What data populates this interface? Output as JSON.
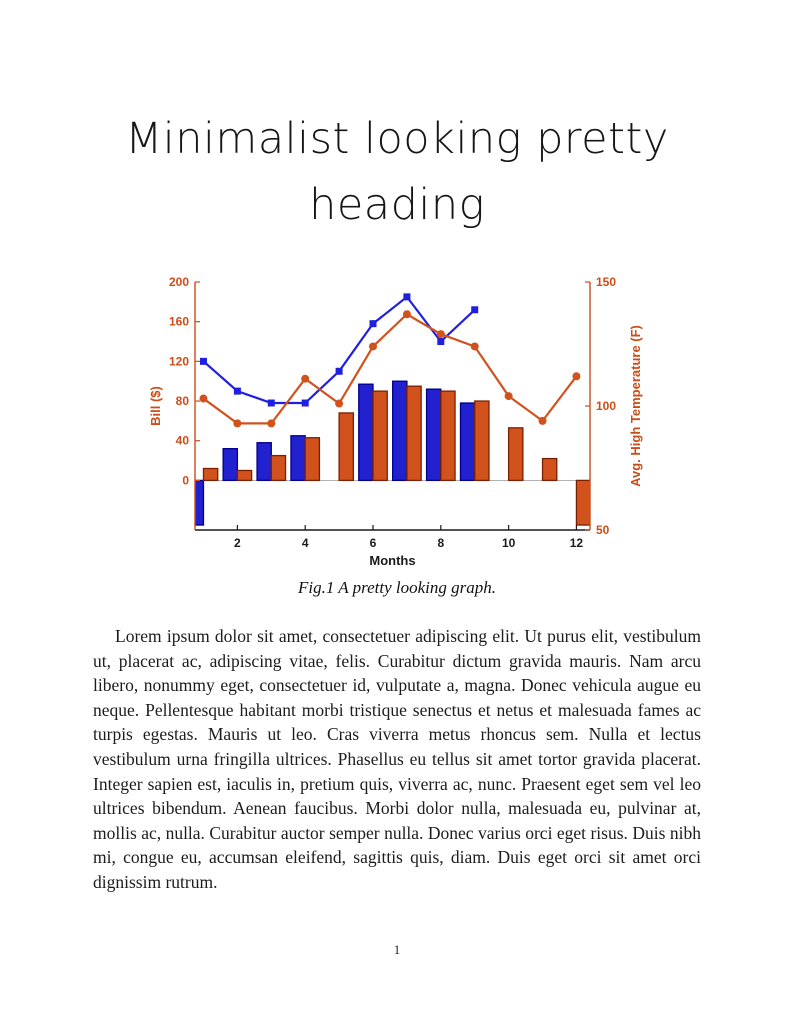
{
  "page": {
    "heading_lines": [
      "Minimalist looking pretty",
      "heading"
    ],
    "figure_caption": "Fig.1 A pretty looking graph.",
    "body_paragraph": "Lorem ipsum dolor sit amet, consectetuer adipiscing elit. Ut purus elit, vestibulum ut, placerat ac, adipiscing vitae, felis. Curabitur dictum gravida mauris. Nam arcu libero, nonummy eget, consectetuer id, vulputate a, magna. Donec vehicula augue eu neque. Pellentesque habitant morbi tristique senectus et netus et malesuada fames ac turpis egestas. Mauris ut leo. Cras viverra metus rhoncus sem. Nulla et lectus vestibulum urna fringilla ultrices. Phasellus eu tellus sit amet tortor gravida placerat. Integer sapien est, iaculis in, pretium quis, viverra ac, nunc. Praesent eget sem vel leo ultrices bibendum. Aenean faucibus. Morbi dolor nulla, malesuada eu, pulvinar at, mollis ac, nulla. Curabitur auctor semper nulla. Donec varius orci eget risus. Duis nibh mi, congue eu, accumsan eleifend, sagittis quis, diam. Duis eget orci sit amet orci dignissim rutrum.",
    "page_number": "1"
  },
  "chart_data": {
    "type": "combo",
    "title": "",
    "xlabel": "Months",
    "ylabel_left": "Bill ($)",
    "ylabel_right": "Avg. High Temperature (F)",
    "x": [
      1,
      2,
      3,
      4,
      5,
      6,
      7,
      8,
      9,
      10,
      11,
      12
    ],
    "xlim": [
      0.75,
      12.4
    ],
    "xticks": [
      2,
      4,
      6,
      8,
      10,
      12
    ],
    "ylim_left": [
      -50,
      200
    ],
    "yticks_left": [
      0,
      40,
      80,
      120,
      160,
      200
    ],
    "ylim_right": [
      50,
      150
    ],
    "yticks_right": [
      50,
      100,
      150
    ],
    "grid": false,
    "legend": "none",
    "axis_color_left": "#cb4d17",
    "axis_color_right": "#cb4d17",
    "axis_color_x": "#1a1a1a",
    "series": [
      {
        "name": "bill-bars",
        "type": "bar",
        "axis": "left",
        "color": "#2121cf",
        "edge_color": "#00008b",
        "values": [
          -45,
          32,
          38,
          45,
          null,
          97,
          100,
          92,
          78,
          null,
          null,
          null
        ]
      },
      {
        "name": "temp-bars",
        "type": "bar",
        "axis": "left",
        "color": "#d2521e",
        "edge_color": "#7a2000",
        "values": [
          12,
          10,
          25,
          43,
          68,
          90,
          95,
          90,
          80,
          53,
          22,
          -45
        ]
      },
      {
        "name": "bill-line",
        "type": "line",
        "axis": "left",
        "color": "#1f1fe0",
        "marker": "square",
        "values": [
          120,
          90,
          78,
          78,
          110,
          158,
          185,
          140,
          172,
          null,
          null,
          null
        ]
      },
      {
        "name": "temp-line",
        "type": "line",
        "axis": "right",
        "color": "#d2521e",
        "marker": "circle",
        "values": [
          103,
          93,
          93,
          111,
          101,
          124,
          137,
          129,
          124,
          104,
          94,
          112
        ]
      }
    ]
  }
}
